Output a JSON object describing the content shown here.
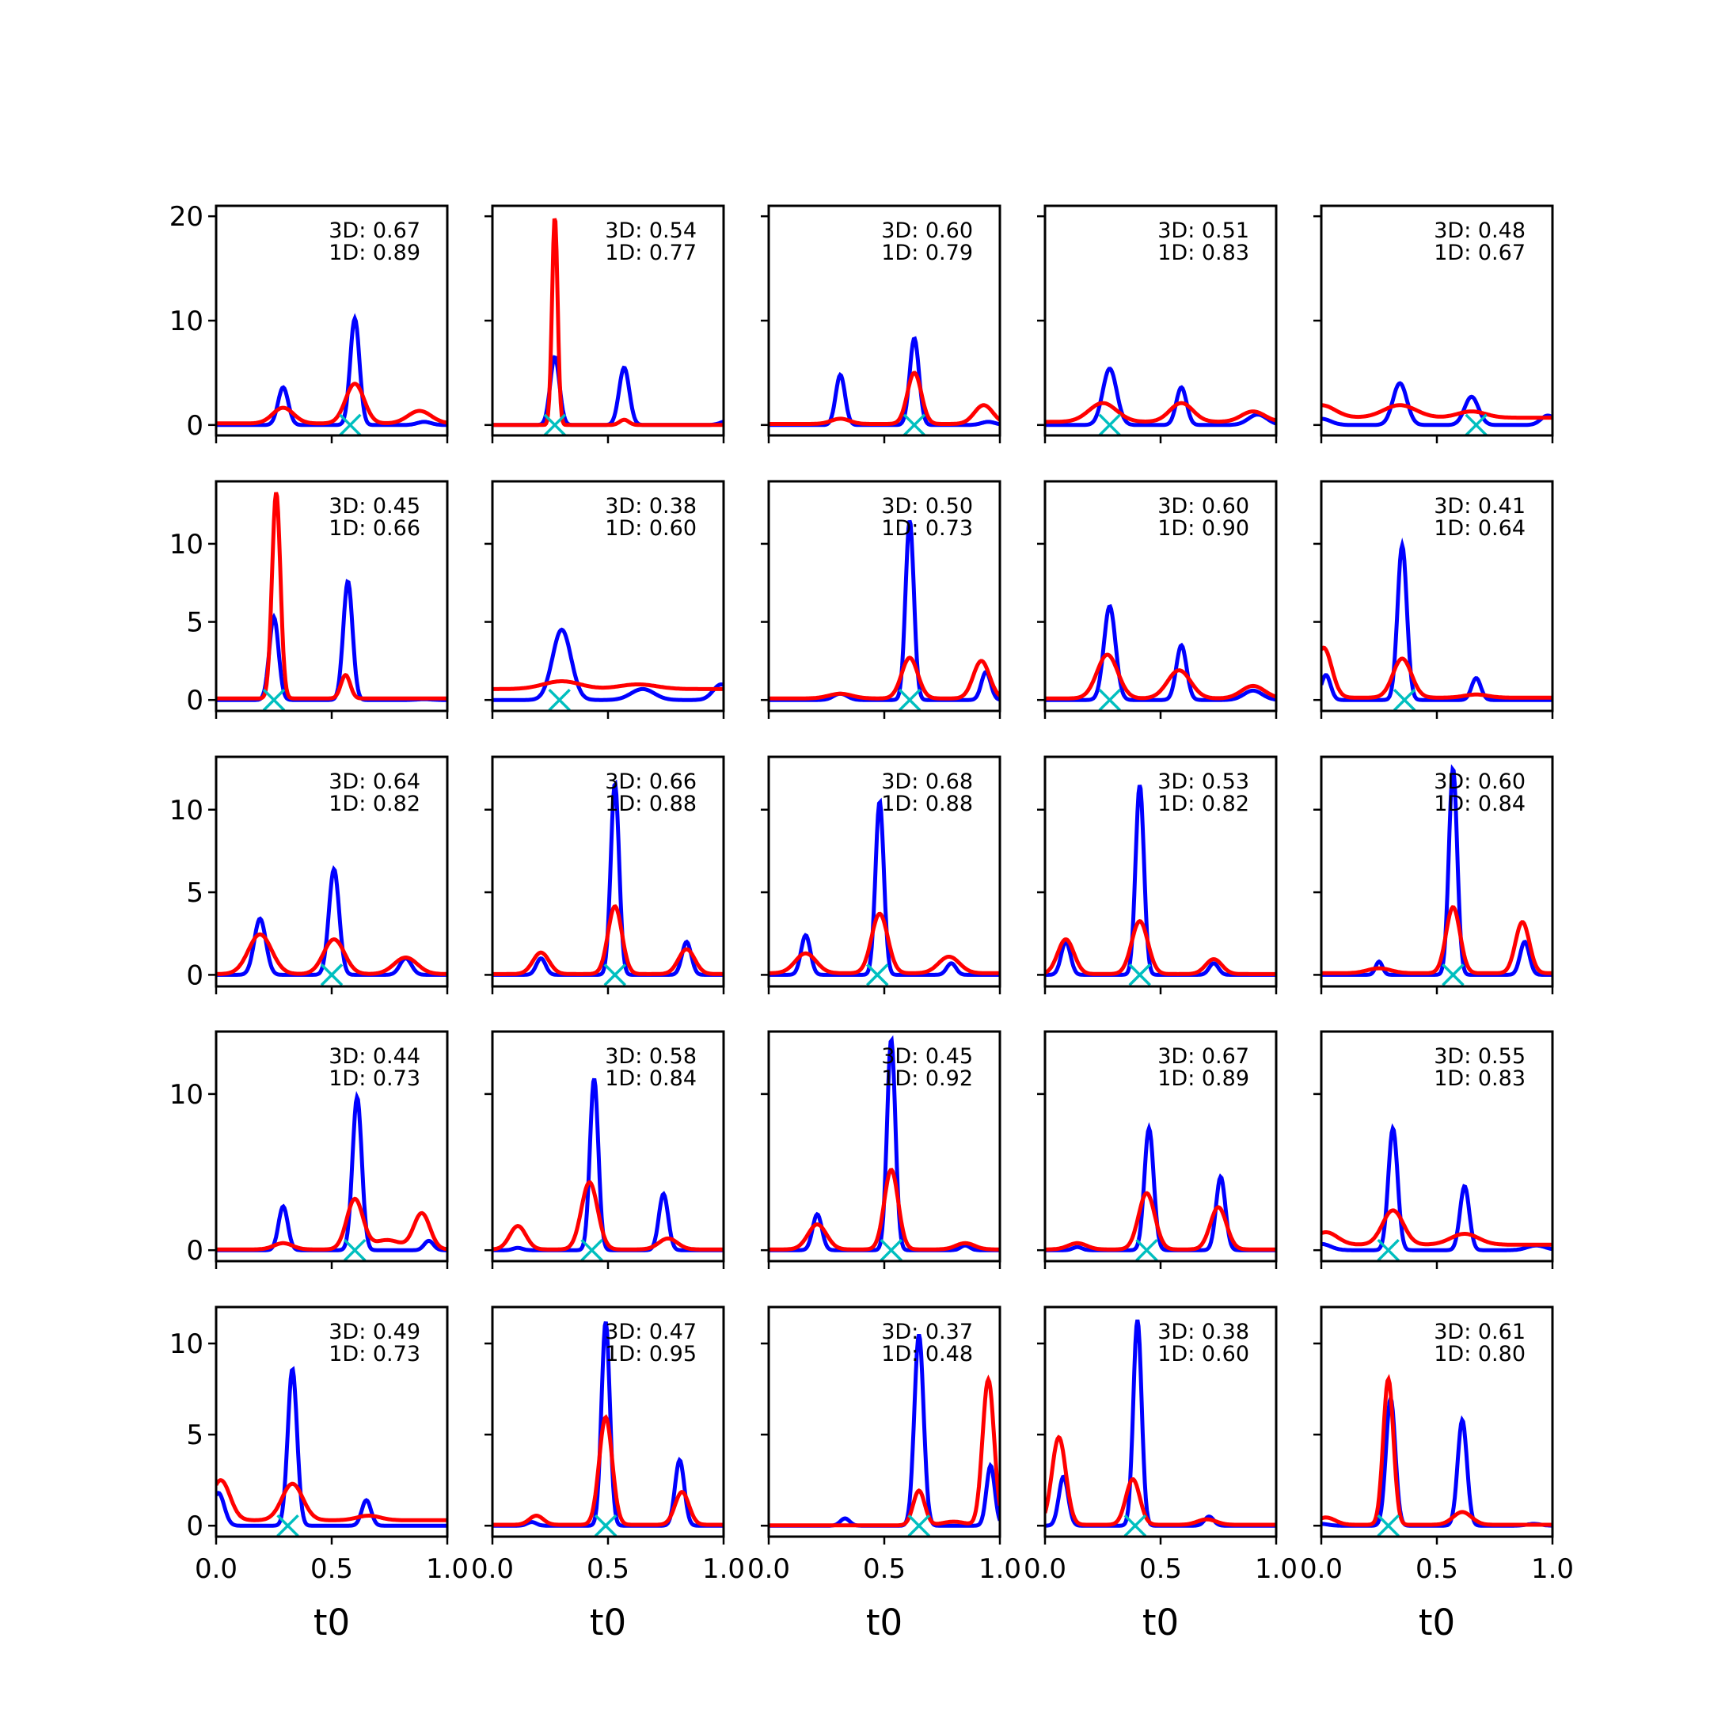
{
  "figure": {
    "rows": 5,
    "cols": 5,
    "x_label": "t0",
    "x_ticks": [
      "0.0",
      "0.5",
      "1.0"
    ],
    "series_colors": {
      "3D": "#0000ff",
      "1D": "#ff0000",
      "marker": "#00bfbf"
    },
    "marker_symbol": "x"
  },
  "chart_data": [
    {
      "type": "line",
      "ylim": [
        -1,
        21
      ],
      "yticks": [
        0,
        10,
        20
      ],
      "ytick_labels": [
        "0",
        "10",
        "20"
      ],
      "score_3d": "3D: 0.67",
      "score_1d": "1D: 0.89",
      "marker_x": 0.58,
      "blue_peaks": [
        [
          0.29,
          3.6,
          0.022
        ],
        [
          0.6,
          10.2,
          0.02
        ],
        [
          0.9,
          0.3,
          0.03
        ]
      ],
      "red_peaks": [
        [
          0.29,
          1.5,
          0.045
        ],
        [
          0.6,
          3.8,
          0.04
        ],
        [
          0.88,
          1.2,
          0.05
        ]
      ],
      "red_base": 0.15
    },
    {
      "type": "line",
      "ylim": [
        -1,
        21
      ],
      "yticks": [
        0,
        10,
        20
      ],
      "ytick_labels": [],
      "score_3d": "3D: 0.54",
      "score_1d": "1D: 0.77",
      "marker_x": 0.27,
      "blue_peaks": [
        [
          0.27,
          6.5,
          0.02
        ],
        [
          0.57,
          5.5,
          0.022
        ],
        [
          1.02,
          0.4,
          0.03
        ]
      ],
      "red_peaks": [
        [
          0.27,
          20,
          0.012
        ],
        [
          0.57,
          0.5,
          0.02
        ]
      ],
      "red_base": 0
    },
    {
      "type": "line",
      "ylim": [
        -1,
        21
      ],
      "yticks": [
        0,
        10,
        20
      ],
      "ytick_labels": [],
      "score_3d": "3D: 0.60",
      "score_1d": "1D: 0.79",
      "marker_x": 0.63,
      "blue_peaks": [
        [
          0.31,
          4.8,
          0.02
        ],
        [
          0.63,
          8.3,
          0.02
        ],
        [
          0.95,
          0.3,
          0.03
        ]
      ],
      "red_peaks": [
        [
          0.31,
          0.5,
          0.04
        ],
        [
          0.63,
          4.9,
          0.03
        ],
        [
          0.93,
          1.8,
          0.04
        ]
      ],
      "red_base": 0.1
    },
    {
      "type": "line",
      "ylim": [
        -1,
        21
      ],
      "yticks": [
        0,
        10,
        20
      ],
      "ytick_labels": [],
      "score_3d": "3D: 0.51",
      "score_1d": "1D: 0.83",
      "marker_x": 0.28,
      "blue_peaks": [
        [
          0.28,
          5.4,
          0.03
        ],
        [
          0.59,
          3.6,
          0.022
        ],
        [
          0.92,
          1.0,
          0.04
        ]
      ],
      "red_peaks": [
        [
          0.25,
          1.8,
          0.06
        ],
        [
          0.59,
          1.8,
          0.05
        ],
        [
          0.9,
          1.0,
          0.05
        ]
      ],
      "red_base": 0.3
    },
    {
      "type": "line",
      "ylim": [
        -1,
        21
      ],
      "yticks": [
        0,
        10,
        20
      ],
      "ytick_labels": [],
      "score_3d": "3D: 0.48",
      "score_1d": "1D: 0.67",
      "marker_x": 0.67,
      "blue_peaks": [
        [
          0.0,
          0.6,
          0.04
        ],
        [
          0.34,
          4.0,
          0.03
        ],
        [
          0.65,
          2.7,
          0.03
        ],
        [
          0.98,
          0.9,
          0.03
        ]
      ],
      "red_peaks": [
        [
          0.0,
          1.2,
          0.06
        ],
        [
          0.34,
          1.2,
          0.07
        ],
        [
          0.65,
          0.6,
          0.06
        ]
      ],
      "red_base": 0.7
    },
    {
      "type": "line",
      "ylim": [
        -0.7,
        14
      ],
      "yticks": [
        0,
        5,
        10
      ],
      "ytick_labels": [
        "0",
        "5",
        "10"
      ],
      "score_3d": "3D: 0.45",
      "score_1d": "1D: 0.66",
      "marker_x": 0.25,
      "blue_peaks": [
        [
          0.25,
          5.3,
          0.02
        ],
        [
          0.57,
          7.6,
          0.02
        ],
        [
          0.9,
          0.05,
          0.03
        ]
      ],
      "red_peaks": [
        [
          0.26,
          13.2,
          0.018
        ],
        [
          0.56,
          1.5,
          0.02
        ]
      ],
      "red_base": 0.1
    },
    {
      "type": "line",
      "ylim": [
        -0.7,
        14
      ],
      "yticks": [
        0,
        5,
        10
      ],
      "ytick_labels": [],
      "score_3d": "3D: 0.38",
      "score_1d": "1D: 0.60",
      "marker_x": 0.29,
      "blue_peaks": [
        [
          0.3,
          4.5,
          0.04
        ],
        [
          0.65,
          0.7,
          0.05
        ],
        [
          0.99,
          1.0,
          0.035
        ]
      ],
      "red_peaks": [
        [
          0.3,
          0.5,
          0.08
        ],
        [
          0.63,
          0.3,
          0.08
        ]
      ],
      "red_base": 0.7
    },
    {
      "type": "line",
      "ylim": [
        -0.7,
        14
      ],
      "yticks": [
        0,
        5,
        10
      ],
      "ytick_labels": [],
      "score_3d": "3D: 0.50",
      "score_1d": "1D: 0.73",
      "marker_x": 0.61,
      "blue_peaks": [
        [
          0.31,
          0.4,
          0.03
        ],
        [
          0.61,
          11.5,
          0.018
        ],
        [
          0.94,
          1.8,
          0.02
        ]
      ],
      "red_peaks": [
        [
          0.31,
          0.3,
          0.05
        ],
        [
          0.61,
          2.6,
          0.035
        ],
        [
          0.92,
          2.4,
          0.035
        ]
      ],
      "red_base": 0.1
    },
    {
      "type": "line",
      "ylim": [
        -0.7,
        14
      ],
      "yticks": [
        0,
        5,
        10
      ],
      "ytick_labels": [],
      "score_3d": "3D: 0.60",
      "score_1d": "1D: 0.90",
      "marker_x": 0.28,
      "blue_peaks": [
        [
          0.28,
          6.0,
          0.025
        ],
        [
          0.59,
          3.5,
          0.022
        ],
        [
          0.9,
          0.6,
          0.04
        ]
      ],
      "red_peaks": [
        [
          0.27,
          2.8,
          0.045
        ],
        [
          0.58,
          1.8,
          0.05
        ],
        [
          0.9,
          0.8,
          0.05
        ]
      ],
      "red_base": 0.1
    },
    {
      "type": "line",
      "ylim": [
        -0.7,
        14
      ],
      "yticks": [
        0,
        5,
        10
      ],
      "ytick_labels": [],
      "score_3d": "3D: 0.41",
      "score_1d": "1D: 0.64",
      "marker_x": 0.36,
      "blue_peaks": [
        [
          0.02,
          1.6,
          0.02
        ],
        [
          0.35,
          9.9,
          0.02
        ],
        [
          0.67,
          1.4,
          0.02
        ]
      ],
      "red_peaks": [
        [
          0.01,
          3.2,
          0.035
        ],
        [
          0.35,
          2.5,
          0.04
        ],
        [
          0.67,
          0.2,
          0.05
        ]
      ],
      "red_base": 0.15
    },
    {
      "type": "line",
      "ylim": [
        -0.7,
        13.2
      ],
      "yticks": [
        0,
        5,
        10
      ],
      "ytick_labels": [
        "0",
        "5",
        "10"
      ],
      "score_3d": "3D: 0.64",
      "score_1d": "1D: 0.82",
      "marker_x": 0.5,
      "blue_peaks": [
        [
          0.19,
          3.4,
          0.025
        ],
        [
          0.51,
          6.4,
          0.022
        ],
        [
          0.82,
          1.0,
          0.025
        ]
      ],
      "red_peaks": [
        [
          0.19,
          2.4,
          0.05
        ],
        [
          0.51,
          2.1,
          0.045
        ],
        [
          0.82,
          1.0,
          0.05
        ]
      ],
      "red_base": 0.05
    },
    {
      "type": "line",
      "ylim": [
        -0.7,
        13.2
      ],
      "yticks": [
        0,
        5,
        10
      ],
      "ytick_labels": [],
      "score_3d": "3D: 0.66",
      "score_1d": "1D: 0.88",
      "marker_x": 0.53,
      "blue_peaks": [
        [
          0.21,
          1.0,
          0.02
        ],
        [
          0.53,
          11.6,
          0.018
        ],
        [
          0.84,
          2.0,
          0.02
        ]
      ],
      "red_peaks": [
        [
          0.21,
          1.3,
          0.035
        ],
        [
          0.53,
          4.1,
          0.03
        ],
        [
          0.84,
          1.5,
          0.035
        ]
      ],
      "red_base": 0.05
    },
    {
      "type": "line",
      "ylim": [
        -0.7,
        13.2
      ],
      "yticks": [
        0,
        5,
        10
      ],
      "ytick_labels": [],
      "score_3d": "3D: 0.68",
      "score_1d": "1D: 0.88",
      "marker_x": 0.47,
      "blue_peaks": [
        [
          0.16,
          2.4,
          0.02
        ],
        [
          0.48,
          10.5,
          0.018
        ],
        [
          0.79,
          0.7,
          0.02
        ]
      ],
      "red_peaks": [
        [
          0.16,
          1.2,
          0.045
        ],
        [
          0.48,
          3.6,
          0.035
        ],
        [
          0.78,
          1.0,
          0.045
        ]
      ],
      "red_base": 0.1
    },
    {
      "type": "line",
      "ylim": [
        -0.7,
        13.2
      ],
      "yticks": [
        0,
        5,
        10
      ],
      "ytick_labels": [],
      "score_3d": "3D: 0.53",
      "score_1d": "1D: 0.82",
      "marker_x": 0.41,
      "blue_peaks": [
        [
          0.09,
          2.0,
          0.02
        ],
        [
          0.41,
          11.5,
          0.018
        ],
        [
          0.73,
          0.7,
          0.02
        ]
      ],
      "red_peaks": [
        [
          0.09,
          2.1,
          0.035
        ],
        [
          0.41,
          3.2,
          0.035
        ],
        [
          0.73,
          0.9,
          0.035
        ]
      ],
      "red_base": 0.05
    },
    {
      "type": "line",
      "ylim": [
        -0.7,
        13.2
      ],
      "yticks": [
        0,
        5,
        10
      ],
      "ytick_labels": [],
      "score_3d": "3D: 0.60",
      "score_1d": "1D: 0.84",
      "marker_x": 0.57,
      "blue_peaks": [
        [
          0.25,
          0.8,
          0.015
        ],
        [
          0.57,
          12.5,
          0.018
        ],
        [
          0.88,
          2.0,
          0.02
        ]
      ],
      "red_peaks": [
        [
          0.25,
          0.3,
          0.05
        ],
        [
          0.57,
          4.0,
          0.03
        ],
        [
          0.87,
          3.1,
          0.03
        ]
      ],
      "red_base": 0.1
    },
    {
      "type": "line",
      "ylim": [
        -0.7,
        14
      ],
      "yticks": [
        0,
        10
      ],
      "ytick_labels": [
        "0",
        "10"
      ],
      "score_3d": "3D: 0.44",
      "score_1d": "1D: 0.73",
      "marker_x": 0.6,
      "blue_peaks": [
        [
          0.29,
          2.8,
          0.02
        ],
        [
          0.61,
          9.8,
          0.02
        ],
        [
          0.92,
          0.6,
          0.02
        ]
      ],
      "red_peaks": [
        [
          0.29,
          0.4,
          0.04
        ],
        [
          0.6,
          3.2,
          0.035
        ],
        [
          0.89,
          2.3,
          0.035
        ],
        [
          0.74,
          0.6,
          0.06
        ]
      ],
      "red_base": 0.05
    },
    {
      "type": "line",
      "ylim": [
        -0.7,
        14
      ],
      "yticks": [
        0,
        10
      ],
      "ytick_labels": [],
      "score_3d": "3D: 0.58",
      "score_1d": "1D: 0.84",
      "marker_x": 0.43,
      "blue_peaks": [
        [
          0.11,
          0.15,
          0.02
        ],
        [
          0.44,
          11.0,
          0.018
        ],
        [
          0.74,
          3.6,
          0.02
        ]
      ],
      "red_peaks": [
        [
          0.11,
          1.5,
          0.035
        ],
        [
          0.42,
          4.3,
          0.035
        ],
        [
          0.76,
          0.7,
          0.04
        ]
      ],
      "red_base": 0.05
    },
    {
      "type": "line",
      "ylim": [
        -0.7,
        14
      ],
      "yticks": [
        0,
        10
      ],
      "ytick_labels": [],
      "score_3d": "3D: 0.45",
      "score_1d": "1D: 0.92",
      "marker_x": 0.53,
      "blue_peaks": [
        [
          0.21,
          2.3,
          0.02
        ],
        [
          0.53,
          13.5,
          0.018
        ],
        [
          0.85,
          0.3,
          0.02
        ]
      ],
      "red_peaks": [
        [
          0.21,
          1.6,
          0.04
        ],
        [
          0.53,
          5.1,
          0.03
        ],
        [
          0.85,
          0.4,
          0.04
        ]
      ],
      "red_base": 0.05
    },
    {
      "type": "line",
      "ylim": [
        -0.7,
        14
      ],
      "yticks": [
        0,
        10
      ],
      "ytick_labels": [],
      "score_3d": "3D: 0.67",
      "score_1d": "1D: 0.89",
      "marker_x": 0.44,
      "blue_peaks": [
        [
          0.14,
          0.2,
          0.02
        ],
        [
          0.45,
          7.8,
          0.02
        ],
        [
          0.76,
          4.7,
          0.02
        ]
      ],
      "red_peaks": [
        [
          0.14,
          0.4,
          0.04
        ],
        [
          0.44,
          3.6,
          0.035
        ],
        [
          0.75,
          2.7,
          0.035
        ]
      ],
      "red_base": 0.05
    },
    {
      "type": "line",
      "ylim": [
        -0.7,
        14
      ],
      "yticks": [
        0,
        10
      ],
      "ytick_labels": [],
      "score_3d": "3D: 0.55",
      "score_1d": "1D: 0.83",
      "marker_x": 0.29,
      "blue_peaks": [
        [
          0.0,
          0.4,
          0.04
        ],
        [
          0.31,
          7.8,
          0.02
        ],
        [
          0.62,
          4.1,
          0.02
        ],
        [
          0.93,
          0.3,
          0.04
        ]
      ],
      "red_peaks": [
        [
          0.02,
          0.8,
          0.05
        ],
        [
          0.31,
          2.2,
          0.045
        ],
        [
          0.62,
          0.7,
          0.06
        ]
      ],
      "red_base": 0.35
    },
    {
      "type": "line",
      "ylim": [
        -0.6,
        12
      ],
      "yticks": [
        0,
        5,
        10
      ],
      "ytick_labels": [
        "0",
        "5",
        "10"
      ],
      "score_3d": "3D: 0.49",
      "score_1d": "1D: 0.73",
      "marker_x": 0.31,
      "blue_peaks": [
        [
          0.01,
          1.8,
          0.025
        ],
        [
          0.33,
          8.6,
          0.02
        ],
        [
          0.65,
          1.4,
          0.02
        ]
      ],
      "red_peaks": [
        [
          0.02,
          2.2,
          0.04
        ],
        [
          0.33,
          2.0,
          0.045
        ],
        [
          0.66,
          0.25,
          0.05
        ]
      ],
      "red_base": 0.3
    },
    {
      "type": "line",
      "ylim": [
        -0.6,
        12
      ],
      "yticks": [
        0,
        5,
        10
      ],
      "ytick_labels": [],
      "score_3d": "3D: 0.47",
      "score_1d": "1D: 0.95",
      "marker_x": 0.49,
      "blue_peaks": [
        [
          0.17,
          0.2,
          0.02
        ],
        [
          0.49,
          11.2,
          0.018
        ],
        [
          0.81,
          3.6,
          0.02
        ]
      ],
      "red_peaks": [
        [
          0.19,
          0.5,
          0.03
        ],
        [
          0.49,
          5.9,
          0.028
        ],
        [
          0.82,
          1.8,
          0.03
        ]
      ],
      "red_base": 0.05
    },
    {
      "type": "line",
      "ylim": [
        -0.6,
        12
      ],
      "yticks": [
        0,
        5,
        10
      ],
      "ytick_labels": [],
      "score_3d": "3D: 0.37",
      "score_1d": "1D: 0.48",
      "marker_x": 0.65,
      "blue_peaks": [
        [
          0.33,
          0.4,
          0.02
        ],
        [
          0.65,
          10.5,
          0.02
        ],
        [
          0.96,
          3.3,
          0.018
        ]
      ],
      "red_peaks": [
        [
          0.65,
          1.9,
          0.025
        ],
        [
          0.95,
          8.0,
          0.025
        ],
        [
          0.8,
          0.2,
          0.05
        ]
      ],
      "red_base": 0.02
    },
    {
      "type": "line",
      "ylim": [
        -0.6,
        12
      ],
      "yticks": [
        0,
        5,
        10
      ],
      "ytick_labels": [],
      "score_3d": "3D: 0.38",
      "score_1d": "1D: 0.60",
      "marker_x": 0.39,
      "blue_peaks": [
        [
          0.08,
          2.7,
          0.02
        ],
        [
          0.4,
          11.3,
          0.018
        ],
        [
          0.71,
          0.5,
          0.02
        ]
      ],
      "red_peaks": [
        [
          0.06,
          4.8,
          0.03
        ],
        [
          0.38,
          2.5,
          0.03
        ],
        [
          0.7,
          0.3,
          0.04
        ]
      ],
      "red_base": 0.05
    },
    {
      "type": "line",
      "ylim": [
        -0.6,
        12
      ],
      "yticks": [
        0,
        5,
        10
      ],
      "ytick_labels": [],
      "score_3d": "3D: 0.61",
      "score_1d": "1D: 0.80",
      "marker_x": 0.29,
      "blue_peaks": [
        [
          0.0,
          0.1,
          0.03
        ],
        [
          0.3,
          7.0,
          0.02
        ],
        [
          0.61,
          5.8,
          0.02
        ],
        [
          0.92,
          0.1,
          0.03
        ]
      ],
      "red_peaks": [
        [
          0.02,
          0.4,
          0.04
        ],
        [
          0.29,
          8.0,
          0.022
        ],
        [
          0.61,
          0.7,
          0.04
        ]
      ],
      "red_base": 0.05
    }
  ]
}
